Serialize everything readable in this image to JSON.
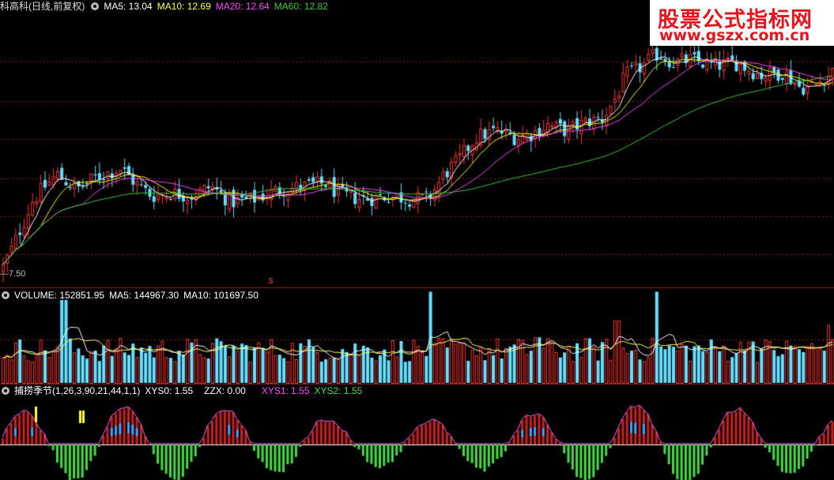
{
  "price_header": {
    "stock": "科高科(日线,前复权)",
    "ma5": "MA5: 13.04",
    "ma10": "MA10: 12.69",
    "ma20": "MA20: 12.64",
    "ma60": "MA60: 12.82"
  },
  "volume_header": {
    "vol": "VOLUME: 152851.95",
    "ma5": "MA5: 144967.30",
    "ma10": "MA10: 101697.50"
  },
  "ind_header": {
    "name": "捕捞季节(1,26,3,90,21,44,1,1)",
    "xys0": "XYS0: 1.55",
    "zzx": "ZZX: 0.00",
    "xys1": "XYS1: 1.55",
    "xys2": "XYS2: 1.55"
  },
  "watermark": {
    "line1": "股票公式指标网",
    "line2": "www.gszx.com.cn"
  },
  "low_label": "—7.50",
  "marker": "$",
  "colors": {
    "up": "#ff3333",
    "down": "#66e0ff",
    "ma5": "#ffffff",
    "ma10": "#ffff00",
    "ma20": "#ff44ff",
    "ma60": "#33cc33",
    "grid": "#8b1a1a",
    "ind_pos": "#cc2020",
    "ind_neg": "#44dd44"
  },
  "chart_data": [
    {
      "type": "candlestick",
      "panel": "price",
      "x_start": 0,
      "x_end": 1055,
      "close_path": [
        [
          0,
          7.5
        ],
        [
          15,
          8.3
        ],
        [
          40,
          9.8
        ],
        [
          70,
          10.6
        ],
        [
          95,
          10.1
        ],
        [
          120,
          10.5
        ],
        [
          150,
          10.8
        ],
        [
          170,
          10.3
        ],
        [
          190,
          9.9
        ],
        [
          215,
          10.0
        ],
        [
          240,
          9.9
        ],
        [
          265,
          10.2
        ],
        [
          290,
          9.7
        ],
        [
          320,
          9.8
        ],
        [
          350,
          10.1
        ],
        [
          380,
          10.2
        ],
        [
          410,
          10.3
        ],
        [
          430,
          9.9
        ],
        [
          460,
          9.8
        ],
        [
          490,
          9.9
        ],
        [
          520,
          9.8
        ],
        [
          540,
          9.8
        ],
        [
          560,
          10.6
        ],
        [
          580,
          11.1
        ],
        [
          600,
          11.8
        ],
        [
          625,
          12.0
        ],
        [
          650,
          11.8
        ],
        [
          670,
          11.9
        ],
        [
          690,
          12.2
        ],
        [
          715,
          12.0
        ],
        [
          740,
          12.3
        ],
        [
          760,
          12.4
        ],
        [
          775,
          13.0
        ],
        [
          790,
          13.8
        ],
        [
          805,
          14.0
        ],
        [
          830,
          14.5
        ],
        [
          850,
          14.2
        ],
        [
          870,
          14.3
        ],
        [
          900,
          14.1
        ],
        [
          930,
          14.2
        ],
        [
          960,
          13.8
        ],
        [
          990,
          13.9
        ],
        [
          1010,
          13.4
        ],
        [
          1030,
          13.5
        ],
        [
          1055,
          14.0
        ]
      ],
      "y_range": [
        7.5,
        14.8
      ],
      "low_label": "7.50"
    },
    {
      "type": "bar",
      "panel": "volume",
      "volume": 152851.95,
      "ma5": 144967.3,
      "ma10": 101697.5,
      "spikes": [
        [
          82,
          1.0
        ],
        [
          545,
          1.1
        ],
        [
          832,
          1.1
        ],
        [
          1048,
          0.7
        ],
        [
          680,
          0.55
        ],
        [
          780,
          0.75
        ],
        [
          950,
          0.5
        ],
        [
          1005,
          0.45
        ]
      ]
    },
    {
      "type": "bar",
      "panel": "indicator",
      "name": "捕捞季节",
      "params": [
        1,
        26,
        3,
        90,
        21,
        44,
        1,
        1
      ],
      "XYS0": 1.55,
      "ZZX": 0.0,
      "XYS1": 1.55,
      "XYS2": 1.55
    }
  ]
}
